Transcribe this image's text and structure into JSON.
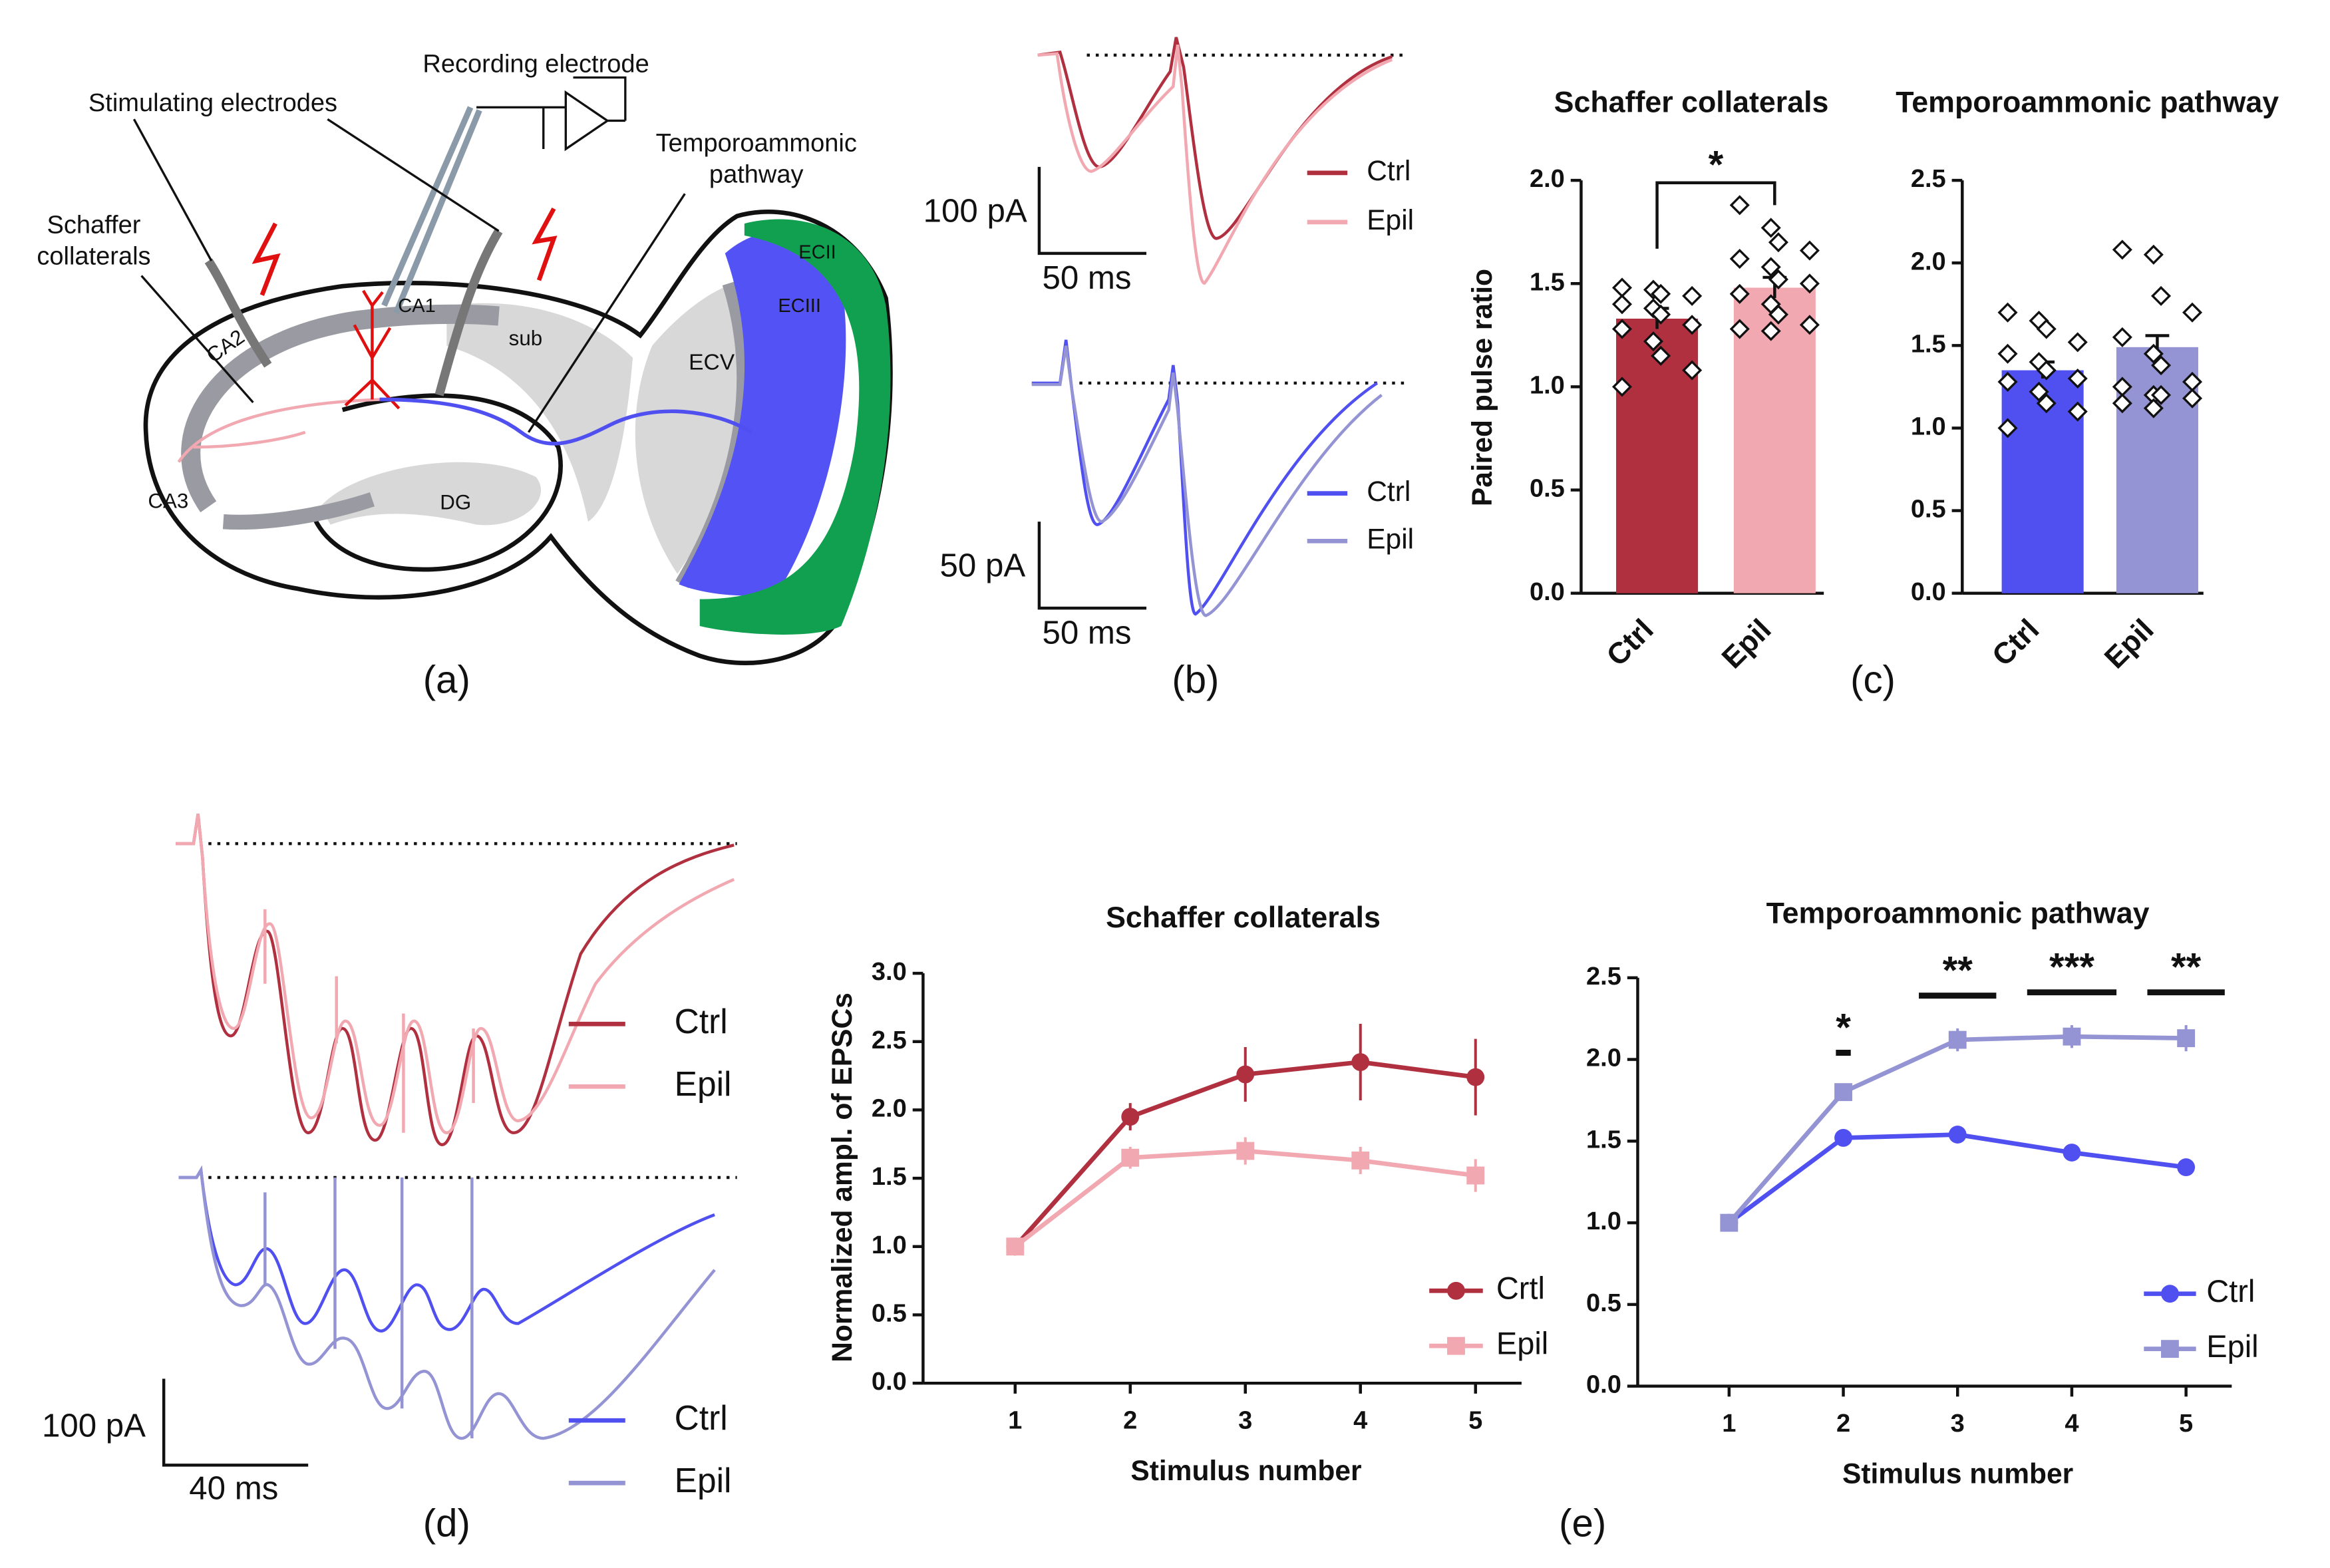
{
  "panel_labels": [
    "(a)",
    "(b)",
    "(c)",
    "(d)",
    "(e)"
  ],
  "diagram": {
    "labels": [
      "Recording electrode",
      "Stimulating electrodes",
      "Temporoammonic",
      "pathway",
      "Schaffer",
      "collaterals",
      "CA1",
      "CA2",
      "CA3",
      "sub",
      "DG",
      "ECV",
      "ECIII",
      "ECII"
    ]
  },
  "traces": [
    {
      "legend": [
        "Ctrl",
        "Epil"
      ],
      "colors": [
        "#b03040",
        "#f2a8b0"
      ],
      "scale": [
        "100 pA",
        "50 ms"
      ]
    },
    {
      "legend": [
        "Ctrl",
        "Epil"
      ],
      "colors": [
        "#5050f0",
        "#9494d4"
      ],
      "scale": [
        "50 pA",
        "50 ms"
      ]
    },
    {
      "legend": [
        "Ctrl",
        "Epil"
      ],
      "colors": [
        "#b03040",
        "#f2a8b0"
      ]
    },
    {
      "legend": [
        "Ctrl",
        "Epil"
      ],
      "colors": [
        "#5050f0",
        "#9494d4"
      ],
      "scale": [
        "100 pA",
        "40 ms"
      ]
    }
  ],
  "chart_data": [
    {
      "type": "bar",
      "title": "Schaffer collaterals",
      "ylabel": "Paired pulse ratio",
      "categories": [
        "Ctrl",
        "Epil"
      ],
      "values": [
        1.33,
        1.48
      ],
      "errors": [
        0.05,
        0.05
      ],
      "colors": [
        "#b03040",
        "#f2a8b0"
      ],
      "points": [
        [
          1.48,
          1.47,
          1.45,
          1.44,
          1.4,
          1.38,
          1.35,
          1.3,
          1.28,
          1.22,
          1.15,
          1.08,
          1.0
        ],
        [
          1.88,
          1.77,
          1.7,
          1.66,
          1.62,
          1.58,
          1.52,
          1.5,
          1.45,
          1.4,
          1.35,
          1.3,
          1.28,
          1.27
        ]
      ],
      "ylim": [
        0,
        2
      ],
      "yticks": [
        {
          "value": 0,
          "label": "0.0"
        },
        0.5,
        {
          "value": 1,
          "label": "1.0"
        },
        1.5,
        {
          "value": 2,
          "label": "2.0"
        }
      ],
      "annotations": [
        "*"
      ]
    },
    {
      "type": "bar",
      "title": "Temporoammonic pathway",
      "categories": [
        "Ctrl",
        "Epil"
      ],
      "values": [
        1.35,
        1.49
      ],
      "errors": [
        0.05,
        0.07
      ],
      "colors": [
        "#5050f0",
        "#9494d4"
      ],
      "points": [
        [
          1.7,
          1.65,
          1.6,
          1.52,
          1.45,
          1.4,
          1.35,
          1.3,
          1.28,
          1.22,
          1.15,
          1.1,
          1.0
        ],
        [
          2.08,
          2.05,
          1.8,
          1.7,
          1.55,
          1.45,
          1.38,
          1.28,
          1.25,
          1.2,
          1.2,
          1.18,
          1.15,
          1.12
        ]
      ],
      "ylim": [
        0,
        2.5
      ],
      "yticks": [
        {
          "value": 0,
          "label": "0.0"
        },
        0.5,
        {
          "value": 1,
          "label": "1.0"
        },
        1.5,
        {
          "value": 2,
          "label": "2.0"
        },
        2.5
      ]
    },
    {
      "type": "line",
      "title": "Schaffer collaterals",
      "xlabel": "Stimulus number",
      "ylabel": "Normalized ampl. of EPSCs",
      "x": [
        1,
        2,
        3,
        4,
        5
      ],
      "xlim": [
        0.2,
        5.4
      ],
      "xticks": [
        1,
        2,
        3,
        4,
        5
      ],
      "ylim": [
        0,
        3
      ],
      "yticks": [
        {
          "value": 0,
          "label": "0.0"
        },
        0.5,
        {
          "value": 1,
          "label": "1.0"
        },
        1.5,
        {
          "value": 2,
          "label": "2.0"
        },
        2.5,
        {
          "value": 3,
          "label": "3.0"
        }
      ],
      "legend": "lower right",
      "series": [
        {
          "name": "Crtl",
          "color": "#b03040",
          "marker": "circle",
          "values": [
            1.0,
            1.95,
            2.26,
            2.35,
            2.24
          ],
          "errors": [
            0.02,
            0.1,
            0.2,
            0.28,
            0.28
          ]
        },
        {
          "name": "Epil",
          "color": "#f2a8b0",
          "marker": "square",
          "values": [
            1.0,
            1.65,
            1.7,
            1.63,
            1.52
          ],
          "errors": [
            0.02,
            0.08,
            0.1,
            0.1,
            0.12
          ]
        }
      ]
    },
    {
      "type": "line",
      "title": "Temporoammonic pathway",
      "xlabel": "Stimulus number",
      "x": [
        1,
        2,
        3,
        4,
        5
      ],
      "xlim": [
        0.2,
        5.4
      ],
      "xticks": [
        1,
        2,
        3,
        4,
        5
      ],
      "ylim": [
        0,
        2.5
      ],
      "yticks": [
        {
          "value": 0,
          "label": "0.0"
        },
        0.5,
        {
          "value": 1,
          "label": "1.0"
        },
        1.5,
        {
          "value": 2,
          "label": "2.0"
        },
        2.5
      ],
      "legend": "lower right",
      "series": [
        {
          "name": "Ctrl",
          "color": "#5050f0",
          "marker": "circle",
          "values": [
            1.0,
            1.52,
            1.54,
            1.43,
            1.34
          ],
          "errors": [
            0.02,
            0.05,
            0.04,
            0.03,
            0.04
          ]
        },
        {
          "name": "Epil",
          "color": "#9494d4",
          "marker": "square",
          "values": [
            1.0,
            1.8,
            2.12,
            2.14,
            2.13
          ],
          "errors": [
            0.02,
            0.04,
            0.07,
            0.07,
            0.08
          ]
        }
      ],
      "annotations": [
        {
          "text": "*",
          "x": 2
        },
        {
          "text": "**",
          "x": 3
        },
        {
          "text": "***",
          "x": 4
        },
        {
          "text": "**",
          "x": 5
        }
      ]
    }
  ]
}
